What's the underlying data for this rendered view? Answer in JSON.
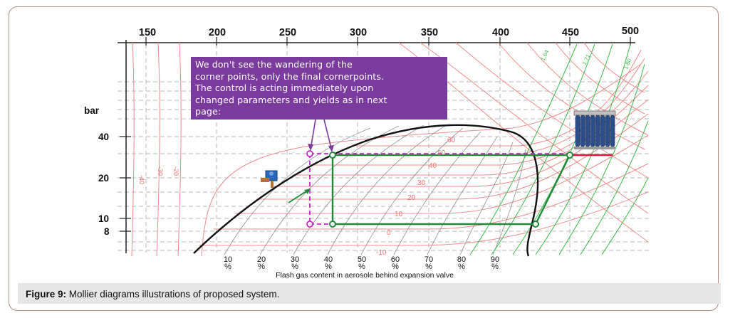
{
  "figure": {
    "caption_label": "Figure 9:",
    "caption_text": " Mollier diagrams illustrations of proposed system."
  },
  "diagram": {
    "top_axis_ticks": [
      "150",
      "200",
      "250",
      "300",
      "350",
      "400",
      "450",
      "500"
    ],
    "pressure_unit": "bar",
    "pressure_ticks": [
      "40",
      "20",
      "10",
      "8"
    ],
    "quality_ticks": [
      {
        "value": "10",
        "unit": "%"
      },
      {
        "value": "20",
        "unit": "%"
      },
      {
        "value": "30",
        "unit": "%"
      },
      {
        "value": "40",
        "unit": "%"
      },
      {
        "value": "50",
        "unit": "%"
      },
      {
        "value": "60",
        "unit": "%"
      },
      {
        "value": "70",
        "unit": "%"
      },
      {
        "value": "80",
        "unit": "%"
      },
      {
        "value": "90",
        "unit": "%"
      }
    ],
    "quality_axis_label": "Flash gas content in aerosole behind expansion valve",
    "isotherm_labels": [
      "60",
      "50",
      "40",
      "30",
      "20",
      "10",
      "0",
      "-10"
    ],
    "left_rotated_labels": [
      "-40",
      "-30",
      "-20"
    ],
    "entropy_labels": [
      "1.64",
      "1.71",
      "1.80"
    ],
    "note_text": "We don't see the wandering of the\ncorner points, only the final cornerpoints.\nThe control is acting immediately upon\nchanged parameters and yields as in next\npage:",
    "colors": {
      "isotherm": "#f08a8a",
      "quality_line": "#8c8c8c",
      "entropy_line": "#3cba4a",
      "dome": "#111111",
      "cycle": "#1f8a3a",
      "dashed_cycle": "#cc22cc",
      "note_bg": "#7b3a9e"
    }
  }
}
